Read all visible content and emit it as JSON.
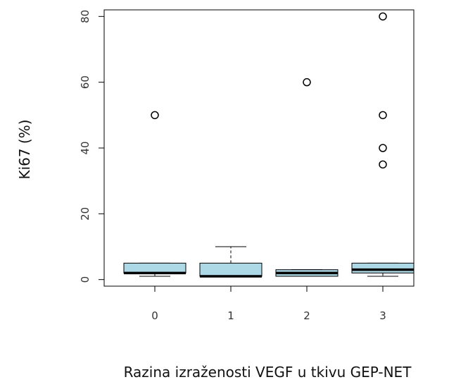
{
  "chart_data": {
    "type": "box",
    "xlabel": "Razina izraženosti  VEGF u tkivu GEP-NET",
    "ylabel": "Ki67 (%)",
    "ylim": [
      -2,
      82
    ],
    "yticks": [
      0,
      20,
      40,
      60,
      80
    ],
    "box_color": "#add8e6",
    "grid": false,
    "legend": "none",
    "categories": [
      "0",
      "1",
      "2",
      "3"
    ],
    "boxes": [
      {
        "category": "0",
        "whisker_low": 1,
        "q1": 2,
        "median": 2,
        "q3": 5,
        "whisker_high": 5,
        "outliers": [
          50
        ]
      },
      {
        "category": "1",
        "whisker_low": 1,
        "q1": 1,
        "median": 1,
        "q3": 5,
        "whisker_high": 10,
        "outliers": []
      },
      {
        "category": "2",
        "whisker_low": 1,
        "q1": 1,
        "median": 2,
        "q3": 3,
        "whisker_high": 3,
        "outliers": [
          60
        ]
      },
      {
        "category": "3",
        "whisker_low": 1,
        "q1": 2,
        "median": 3,
        "q3": 5,
        "whisker_high": 5,
        "outliers": [
          35,
          40,
          50,
          80
        ]
      }
    ]
  }
}
